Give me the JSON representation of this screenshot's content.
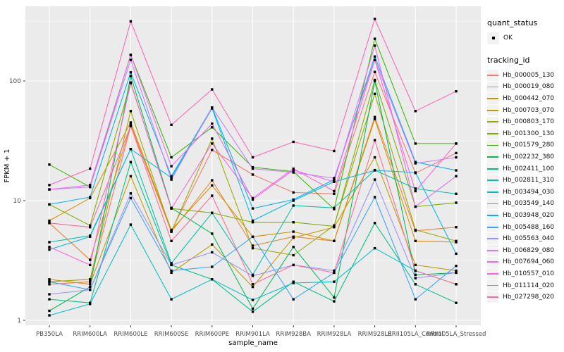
{
  "axis": {
    "x_label": "sample_name",
    "y_label": "FPKM + 1",
    "y_tick_labels": [
      "1",
      "10",
      "100"
    ]
  },
  "legend": {
    "quant_status_title": "quant_status",
    "quant_status_items": [
      {
        "label": "OK",
        "marker": "black-point"
      }
    ],
    "tracking_id_title": "tracking_id"
  },
  "style": {
    "panel_bg": "#EBEBEB",
    "grid_color": "#FFFFFF",
    "tick_text_color": "#4D4D4D",
    "axis_title_color": "#000000",
    "legend_key_bg": "#F2F2F2",
    "point_color": "#000000"
  },
  "chart_data": {
    "type": "line",
    "title": "",
    "xlabel": "sample_name",
    "ylabel": "FPKM + 1",
    "y_scale": "log10",
    "ylim": [
      1,
      420
    ],
    "y_major_ticks": [
      1,
      10,
      100
    ],
    "y_minor_gridlines": [
      3.162,
      31.62,
      316.2
    ],
    "grid": true,
    "legend_position": "right",
    "point_marker": "small black square (quant_status = OK)",
    "categories": [
      "PB350LA",
      "RRIM600LA",
      "RRIM600LE",
      "RRIM600SE",
      "RRIM600PE",
      "RRIM901LA",
      "RRIM928BA",
      "RRIM928LA",
      "RRIM928LE",
      "RRII105LA_Control",
      "RRII105LA_Stressed"
    ],
    "series": [
      {
        "name": "Hb_000005_130",
        "color": "#F8766D",
        "values": [
          2.0,
          2.1,
          42,
          5.6,
          26.5,
          16.5,
          11.7,
          11.4,
          119,
          17,
          25
        ]
      },
      {
        "name": "Hb_000019_080",
        "color": "#EA8331",
        "values": [
          6.5,
          3.2,
          43,
          5.5,
          14.8,
          4.2,
          5.0,
          4.6,
          50,
          5.6,
          6.0
        ]
      },
      {
        "name": "Hb_000442_070",
        "color": "#D89000",
        "values": [
          6.8,
          10.5,
          45,
          5.7,
          13.4,
          5.0,
          5.5,
          4.6,
          48,
          4.6,
          4.5
        ]
      },
      {
        "name": "Hb_000703_070",
        "color": "#C09B00",
        "values": [
          2.2,
          2.0,
          16,
          2.5,
          4.3,
          1.9,
          4.9,
          6.0,
          23,
          2.9,
          2.6
        ]
      },
      {
        "name": "Hb_000803_170",
        "color": "#A3A500",
        "values": [
          2.1,
          2.2,
          56,
          5.5,
          33,
          4.0,
          3.5,
          6.2,
          78,
          5.7,
          4.6
        ]
      },
      {
        "name": "Hb_001300_130",
        "color": "#7CAE00",
        "values": [
          9.3,
          6.2,
          97,
          8.6,
          7.9,
          6.6,
          6.6,
          6.1,
          102,
          8.9,
          9.6
        ]
      },
      {
        "name": "Hb_001579_280",
        "color": "#39B600",
        "values": [
          20,
          13,
          165,
          23,
          41,
          19,
          17.5,
          8.5,
          225,
          30,
          30
        ]
      },
      {
        "name": "Hb_002232_380",
        "color": "#00BB4E",
        "values": [
          1.2,
          1.9,
          110,
          8.7,
          5.3,
          1.25,
          4.1,
          1.55,
          100,
          2.4,
          2.5
        ]
      },
      {
        "name": "Hb_002411_100",
        "color": "#00C087",
        "values": [
          1.5,
          1.4,
          21,
          2.9,
          2.2,
          1.18,
          2.1,
          1.44,
          6.5,
          2.0,
          1.4
        ]
      },
      {
        "name": "Hb_002811_310",
        "color": "#00C1AB",
        "values": [
          4.5,
          5.1,
          27,
          3.0,
          7.9,
          2.4,
          9.1,
          8.7,
          18,
          12.6,
          11.4
        ]
      },
      {
        "name": "Hb_003494_030",
        "color": "#00BFC4",
        "values": [
          1.1,
          1.37,
          6.3,
          1.5,
          2.2,
          1.48,
          2.05,
          2.1,
          4.0,
          2.6,
          2.0
        ]
      },
      {
        "name": "Hb_003549_140",
        "color": "#00BAE0",
        "values": [
          3.9,
          5.0,
          27,
          15.5,
          59,
          6.8,
          10.0,
          14.4,
          17.9,
          17.2,
          3.6
        ]
      },
      {
        "name": "Hb_003948_020",
        "color": "#00B0F6",
        "values": [
          9.3,
          10.7,
          118,
          16,
          60,
          8.6,
          10.2,
          15,
          160,
          21,
          17.9
        ]
      },
      {
        "name": "Hb_005488_160",
        "color": "#35A2FF",
        "values": [
          2.1,
          1.8,
          10.5,
          2.6,
          2.8,
          5.0,
          1.5,
          2.5,
          10.7,
          1.5,
          2.85
        ]
      },
      {
        "name": "Hb_005563_040",
        "color": "#9590FF",
        "values": [
          1.65,
          1.8,
          11.5,
          2.9,
          3.7,
          2.35,
          2.9,
          2.6,
          15,
          2.25,
          2.5
        ]
      },
      {
        "name": "Hb_006829_080",
        "color": "#C77CFF",
        "values": [
          12.4,
          13,
          150,
          15,
          60,
          18.5,
          17.2,
          15.4,
          150,
          20.5,
          23
        ]
      },
      {
        "name": "Hb_007694_060",
        "color": "#E76BF3",
        "values": [
          12.4,
          13.5,
          165,
          19.4,
          44,
          10.2,
          18,
          14.4,
          197,
          8.9,
          16
        ]
      },
      {
        "name": "Hb_010557_010",
        "color": "#FA62DB",
        "values": [
          4.1,
          2.9,
          96,
          8.6,
          30,
          10.5,
          18.5,
          12,
          150,
          12,
          30
        ]
      },
      {
        "name": "Hb_011114_020",
        "color": "#FF62BC",
        "values": [
          13.5,
          18.5,
          315,
          43,
          85,
          23,
          31,
          26,
          330,
          56,
          82
        ]
      },
      {
        "name": "Hb_027298_020",
        "color": "#FF6A98",
        "values": [
          6.5,
          6.0,
          42,
          4.6,
          11,
          2.0,
          2.9,
          2.5,
          32,
          2.6,
          2.0
        ]
      }
    ]
  }
}
